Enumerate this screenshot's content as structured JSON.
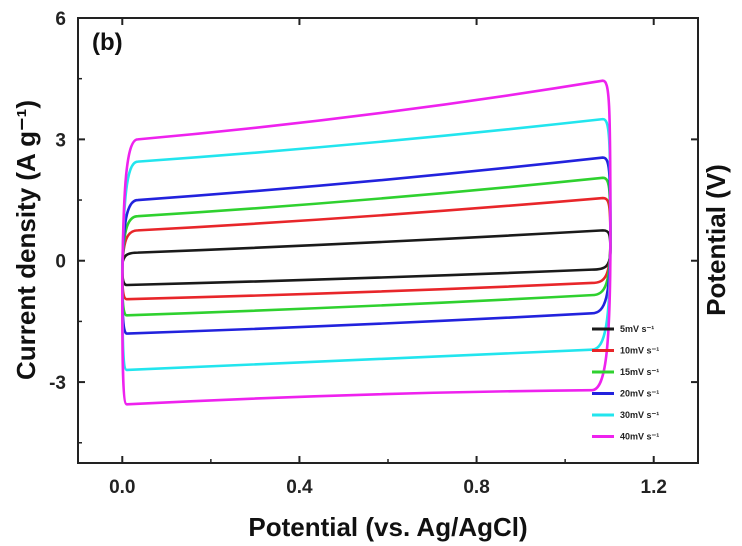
{
  "chart_data": {
    "type": "line",
    "panel_label": "(b)",
    "xlabel": "Potential (vs. Ag/AgCl)",
    "ylabel_left": "Current density (A g⁻¹)",
    "ylabel_right": "Potential (V)",
    "xlim": [
      -0.1,
      1.3
    ],
    "ylim": [
      -5,
      6
    ],
    "xticks": [
      "0.0",
      "0.4",
      "0.8",
      "1.2"
    ],
    "xtick_values": [
      0.0,
      0.4,
      0.8,
      1.2
    ],
    "yticks": [
      "-3",
      "0",
      "3",
      "6"
    ],
    "ytick_values": [
      -3,
      0,
      3,
      6
    ],
    "legend_position": "bottom-right",
    "x_range": [
      0.0,
      1.1
    ],
    "series": [
      {
        "name": "5mV s⁻¹",
        "color": "#1a1a1a",
        "upper": [
          0.2,
          0.42,
          0.75
        ],
        "lower": [
          -0.6,
          -0.45,
          -0.22
        ]
      },
      {
        "name": "10mV s⁻¹",
        "color": "#e8262a",
        "upper": [
          0.75,
          1.05,
          1.55
        ],
        "lower": [
          -0.95,
          -0.8,
          -0.55
        ]
      },
      {
        "name": "15mV s⁻¹",
        "color": "#2fd12f",
        "upper": [
          1.1,
          1.45,
          2.05
        ],
        "lower": [
          -1.35,
          -1.15,
          -0.85
        ]
      },
      {
        "name": "20mV s⁻¹",
        "color": "#2222dd",
        "upper": [
          1.5,
          1.9,
          2.55
        ],
        "lower": [
          -1.8,
          -1.6,
          -1.3
        ]
      },
      {
        "name": "30mV s⁻¹",
        "color": "#22e5ee",
        "upper": [
          2.45,
          2.85,
          3.5
        ],
        "lower": [
          -2.7,
          -2.45,
          -2.2
        ]
      },
      {
        "name": "40mV s⁻¹",
        "color": "#ee22ee",
        "upper": [
          3.0,
          3.5,
          4.45
        ],
        "lower": [
          -3.55,
          -3.25,
          -3.2
        ]
      }
    ]
  }
}
